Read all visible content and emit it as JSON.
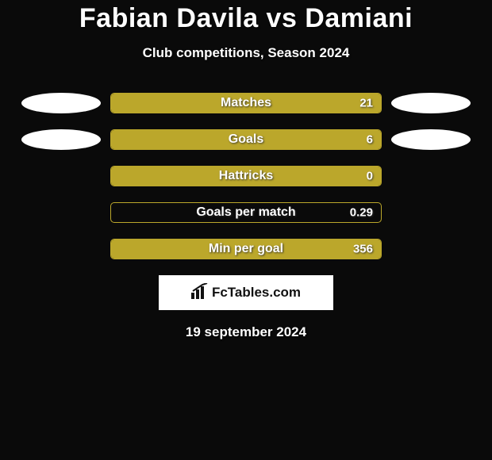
{
  "title": "Fabian Davila vs Damiani",
  "subtitle": "Club competitions, Season 2024",
  "colors": {
    "bar_fill": "#bba72b",
    "bar_border": "#bba72b",
    "background": "#0a0a0a",
    "ellipse": "#ffffff"
  },
  "stats": [
    {
      "label": "Matches",
      "value": "21",
      "fill_pct": 100,
      "left_ellipse": true,
      "right_ellipse": true
    },
    {
      "label": "Goals",
      "value": "6",
      "fill_pct": 100,
      "left_ellipse": true,
      "right_ellipse": true
    },
    {
      "label": "Hattricks",
      "value": "0",
      "fill_pct": 100,
      "left_ellipse": false,
      "right_ellipse": false
    },
    {
      "label": "Goals per match",
      "value": "0.29",
      "fill_pct": 0,
      "left_ellipse": false,
      "right_ellipse": false
    },
    {
      "label": "Min per goal",
      "value": "356",
      "fill_pct": 100,
      "left_ellipse": false,
      "right_ellipse": false
    }
  ],
  "logo_text": "FcTables.com",
  "date": "19 september 2024"
}
